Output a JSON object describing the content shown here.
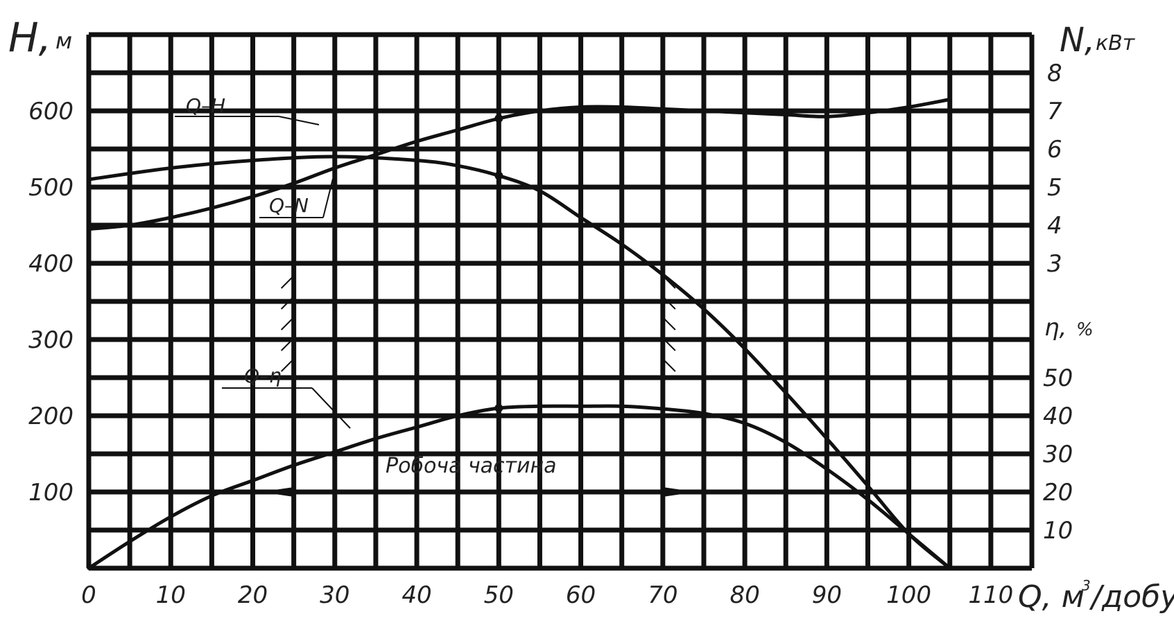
{
  "chart_data": {
    "type": "line",
    "colors": {
      "ink": "#111111",
      "background": "#ffffff"
    },
    "grid": true,
    "x_axis": {
      "label_main": "Q, м",
      "label_sup": "3",
      "label_tail": "/добу",
      "range": [
        0,
        110
      ],
      "ticks": [
        "0",
        "10",
        "20",
        "30",
        "40",
        "50",
        "60",
        "70",
        "80",
        "90",
        "100",
        "110"
      ]
    },
    "left_axis": {
      "label_main": "H,",
      "label_unit": "м",
      "range": [
        0,
        600
      ],
      "ticks": [
        "100",
        "200",
        "300",
        "400",
        "500",
        "600"
      ]
    },
    "right_axis_power": {
      "label_main": "N,",
      "label_unit": "кВт",
      "range": [
        3,
        8
      ],
      "ticks": [
        "3",
        "4",
        "5",
        "6",
        "7",
        "8"
      ]
    },
    "right_axis_eff": {
      "label_main": "η,",
      "label_unit": "%",
      "range": [
        0,
        50
      ],
      "ticks": [
        "10",
        "20",
        "30",
        "40",
        "50"
      ]
    },
    "series": [
      {
        "name": "Q–H",
        "axis": "H",
        "x": [
          0,
          10,
          20,
          30,
          40,
          45,
          50,
          55,
          60,
          65,
          70,
          75,
          80,
          85,
          90,
          95,
          100,
          105
        ],
        "y": [
          510,
          525,
          535,
          540,
          535,
          528,
          515,
          495,
          460,
          425,
          385,
          340,
          288,
          230,
          170,
          108,
          45,
          0
        ]
      },
      {
        "name": "Q–N",
        "axis": "N",
        "x": [
          0,
          5,
          10,
          15,
          20,
          25,
          30,
          35,
          40,
          45,
          50,
          55,
          60,
          65,
          70,
          75,
          80,
          85,
          90,
          95,
          100,
          105
        ],
        "y": [
          3.9,
          4.0,
          4.2,
          4.45,
          4.75,
          5.1,
          5.5,
          5.85,
          6.2,
          6.5,
          6.8,
          7.0,
          7.1,
          7.1,
          7.05,
          7.0,
          6.95,
          6.9,
          6.85,
          6.95,
          7.1,
          7.3
        ]
      },
      {
        "name": "Q–η",
        "axis": "eta",
        "x": [
          0,
          5,
          10,
          15,
          20,
          25,
          30,
          35,
          40,
          45,
          50,
          55,
          60,
          65,
          70,
          75,
          80,
          85,
          90,
          95,
          100,
          105
        ],
        "y": [
          0,
          7,
          13.5,
          19,
          23,
          27,
          30.5,
          34,
          37,
          40,
          42,
          42.5,
          42.5,
          42.5,
          41.8,
          40.6,
          38,
          33,
          26,
          18,
          9,
          0
        ]
      }
    ],
    "markers": [
      {
        "series": "Q–H",
        "x": 50,
        "y": 515
      },
      {
        "series": "Q–N",
        "x": 50,
        "y": 6.8
      },
      {
        "series": "Q–η",
        "x": 50,
        "y": 42
      }
    ],
    "working_range": {
      "label": "Робоча частина",
      "x_from": 25,
      "x_to": 70
    }
  }
}
